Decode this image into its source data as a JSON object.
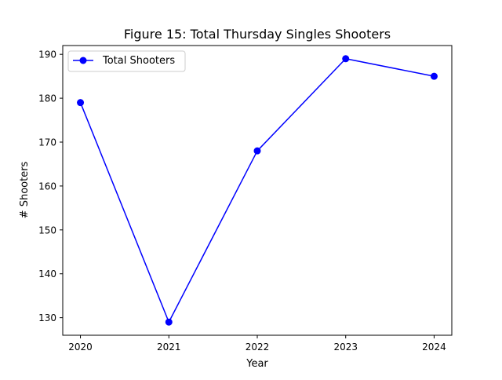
{
  "chart_data": {
    "type": "line",
    "title": "Figure 15: Total Thursday Singles Shooters",
    "xlabel": "Year",
    "ylabel": "# Shooters",
    "x": [
      2020,
      2021,
      2022,
      2023,
      2024
    ],
    "x_tick_labels": [
      "2020",
      "2021",
      "2022",
      "2023",
      "2024"
    ],
    "y_ticks": [
      130,
      140,
      150,
      160,
      170,
      180,
      190
    ],
    "y_tick_labels": [
      "130",
      "140",
      "150",
      "160",
      "170",
      "180",
      "190"
    ],
    "xlim": [
      2019.8,
      2024.2
    ],
    "ylim": [
      126,
      192
    ],
    "grid": false,
    "legend_position": "upper-left",
    "series": [
      {
        "name": "Total Shooters",
        "color": "#0000ff",
        "marker": "circle",
        "values": [
          179,
          129,
          168,
          189,
          185
        ]
      }
    ]
  }
}
